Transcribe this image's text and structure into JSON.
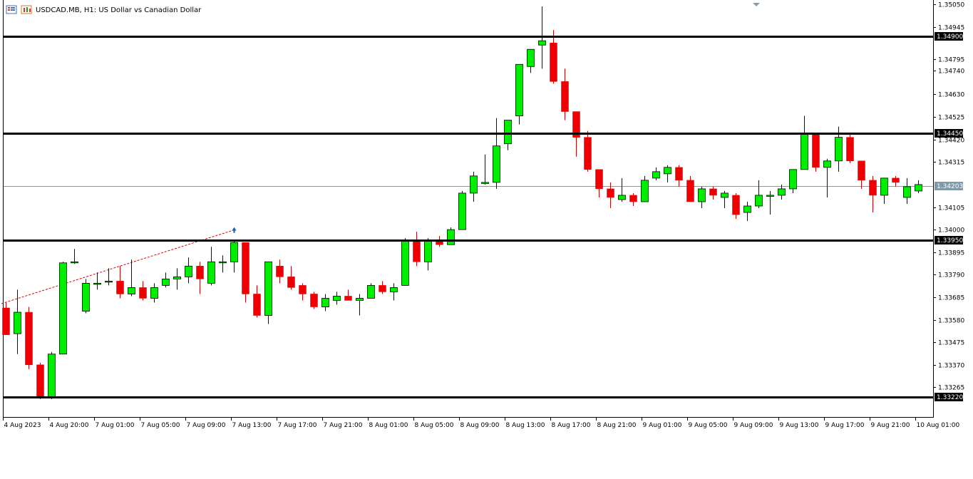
{
  "header": {
    "title": "USDCAD.MB, H1:  US Dollar vs Canadian Dollar"
  },
  "colors": {
    "bull": "#00ee00",
    "bear": "#ee0000",
    "wick_bull": "#111111",
    "wick_bear": "#cc0000",
    "level_line": "#000000",
    "current_price_line": "#7f99a8",
    "trendline": "#dd0000",
    "arrow": "#1a5ea8"
  },
  "chart_data": {
    "type": "candlestick",
    "symbol": "USDCAD.MB",
    "timeframe": "H1",
    "ylim": [
      1.3318,
      1.3505
    ],
    "y_ticks": [
      "1.35050",
      "1.34945",
      "1.34795",
      "1.34740",
      "1.34630",
      "1.34525",
      "1.34420",
      "1.34315",
      "1.34105",
      "1.34000",
      "1.33895",
      "1.33790",
      "1.33685",
      "1.33580",
      "1.33475",
      "1.33370",
      "1.33265"
    ],
    "x_tick_labels": [
      {
        "index": 0,
        "label": "4 Aug 2023"
      },
      {
        "index": 4,
        "label": "4 Aug 20:00"
      },
      {
        "index": 8,
        "label": "7 Aug 01:00"
      },
      {
        "index": 12,
        "label": "7 Aug 05:00"
      },
      {
        "index": 16,
        "label": "7 Aug 09:00"
      },
      {
        "index": 20,
        "label": "7 Aug 13:00"
      },
      {
        "index": 24,
        "label": "7 Aug 17:00"
      },
      {
        "index": 28,
        "label": "7 Aug 21:00"
      },
      {
        "index": 32,
        "label": "8 Aug 01:00"
      },
      {
        "index": 36,
        "label": "8 Aug 05:00"
      },
      {
        "index": 40,
        "label": "8 Aug 09:00"
      },
      {
        "index": 44,
        "label": "8 Aug 13:00"
      },
      {
        "index": 48,
        "label": "8 Aug 17:00"
      },
      {
        "index": 52,
        "label": "8 Aug 21:00"
      },
      {
        "index": 56,
        "label": "9 Aug 01:00"
      },
      {
        "index": 60,
        "label": "9 Aug 05:00"
      },
      {
        "index": 64,
        "label": "9 Aug 09:00"
      },
      {
        "index": 68,
        "label": "9 Aug 13:00"
      },
      {
        "index": 72,
        "label": "9 Aug 17:00"
      },
      {
        "index": 76,
        "label": "9 Aug 21:00"
      },
      {
        "index": 80,
        "label": "10 Aug 01:00"
      }
    ],
    "levels": [
      {
        "price": 1.349,
        "label": "1.34900"
      },
      {
        "price": 1.3445,
        "label": "1.34450"
      },
      {
        "price": 1.3395,
        "label": "1.33950"
      },
      {
        "price": 1.3322,
        "label": "1.33220"
      }
    ],
    "current_price": {
      "price": 1.34203,
      "label": "1.34203"
    },
    "trendline": {
      "from": {
        "index": 0,
        "price": 1.33655
      },
      "to": {
        "index": 20,
        "price": 1.34
      }
    },
    "arrow_marker": {
      "index": 20,
      "price": 1.33995
    },
    "candles": [
      {
        "o": 1.33635,
        "h": 1.3366,
        "l": 1.3351,
        "c": 1.3351
      },
      {
        "o": 1.33515,
        "h": 1.3372,
        "l": 1.3342,
        "c": 1.33615
      },
      {
        "o": 1.33615,
        "h": 1.3364,
        "l": 1.3335,
        "c": 1.3337
      },
      {
        "o": 1.3337,
        "h": 1.3338,
        "l": 1.3321,
        "c": 1.3322
      },
      {
        "o": 1.3322,
        "h": 1.3343,
        "l": 1.3321,
        "c": 1.3342
      },
      {
        "o": 1.3342,
        "h": 1.3385,
        "l": 1.3342,
        "c": 1.33845
      },
      {
        "o": 1.33845,
        "h": 1.3391,
        "l": 1.3384,
        "c": 1.3385
      },
      {
        "o": 1.3362,
        "h": 1.3377,
        "l": 1.3361,
        "c": 1.3375
      },
      {
        "o": 1.3375,
        "h": 1.338,
        "l": 1.3372,
        "c": 1.3375
      },
      {
        "o": 1.3376,
        "h": 1.3382,
        "l": 1.3374,
        "c": 1.3376
      },
      {
        "o": 1.3376,
        "h": 1.3383,
        "l": 1.3368,
        "c": 1.337
      },
      {
        "o": 1.337,
        "h": 1.3386,
        "l": 1.3369,
        "c": 1.3373
      },
      {
        "o": 1.3373,
        "h": 1.3376,
        "l": 1.3367,
        "c": 1.3368
      },
      {
        "o": 1.3368,
        "h": 1.3375,
        "l": 1.3366,
        "c": 1.3373
      },
      {
        "o": 1.3374,
        "h": 1.338,
        "l": 1.3373,
        "c": 1.3377
      },
      {
        "o": 1.3377,
        "h": 1.3382,
        "l": 1.3372,
        "c": 1.3378
      },
      {
        "o": 1.3378,
        "h": 1.3387,
        "l": 1.3375,
        "c": 1.3383
      },
      {
        "o": 1.3383,
        "h": 1.3385,
        "l": 1.337,
        "c": 1.3377
      },
      {
        "o": 1.3375,
        "h": 1.3392,
        "l": 1.3374,
        "c": 1.3385
      },
      {
        "o": 1.3385,
        "h": 1.3388,
        "l": 1.338,
        "c": 1.3385
      },
      {
        "o": 1.3385,
        "h": 1.3395,
        "l": 1.338,
        "c": 1.3394
      },
      {
        "o": 1.3394,
        "h": 1.3394,
        "l": 1.3366,
        "c": 1.337
      },
      {
        "o": 1.337,
        "h": 1.3374,
        "l": 1.3359,
        "c": 1.336
      },
      {
        "o": 1.336,
        "h": 1.3385,
        "l": 1.3356,
        "c": 1.3385
      },
      {
        "o": 1.3383,
        "h": 1.3386,
        "l": 1.3375,
        "c": 1.3378
      },
      {
        "o": 1.3378,
        "h": 1.3383,
        "l": 1.3372,
        "c": 1.3373
      },
      {
        "o": 1.3374,
        "h": 1.3375,
        "l": 1.3367,
        "c": 1.337
      },
      {
        "o": 1.337,
        "h": 1.3371,
        "l": 1.3363,
        "c": 1.3364
      },
      {
        "o": 1.3364,
        "h": 1.337,
        "l": 1.3362,
        "c": 1.3368
      },
      {
        "o": 1.3367,
        "h": 1.3371,
        "l": 1.3365,
        "c": 1.3369
      },
      {
        "o": 1.3369,
        "h": 1.3372,
        "l": 1.3367,
        "c": 1.3367
      },
      {
        "o": 1.3367,
        "h": 1.337,
        "l": 1.336,
        "c": 1.3368
      },
      {
        "o": 1.3368,
        "h": 1.3375,
        "l": 1.3368,
        "c": 1.3374
      },
      {
        "o": 1.3374,
        "h": 1.3376,
        "l": 1.337,
        "c": 1.3371
      },
      {
        "o": 1.3371,
        "h": 1.3375,
        "l": 1.3367,
        "c": 1.3373
      },
      {
        "o": 1.3374,
        "h": 1.3396,
        "l": 1.3374,
        "c": 1.3395
      },
      {
        "o": 1.3395,
        "h": 1.3399,
        "l": 1.3383,
        "c": 1.3385
      },
      {
        "o": 1.3385,
        "h": 1.3396,
        "l": 1.3381,
        "c": 1.3395
      },
      {
        "o": 1.3395,
        "h": 1.3397,
        "l": 1.3392,
        "c": 1.3393
      },
      {
        "o": 1.3393,
        "h": 1.3401,
        "l": 1.3393,
        "c": 1.34
      },
      {
        "o": 1.34,
        "h": 1.3418,
        "l": 1.34,
        "c": 1.3417
      },
      {
        "o": 1.3417,
        "h": 1.3427,
        "l": 1.3413,
        "c": 1.3425
      },
      {
        "o": 1.3422,
        "h": 1.3435,
        "l": 1.3421,
        "c": 1.3422
      },
      {
        "o": 1.3422,
        "h": 1.3452,
        "l": 1.3419,
        "c": 1.3439
      },
      {
        "o": 1.344,
        "h": 1.3451,
        "l": 1.3437,
        "c": 1.3451
      },
      {
        "o": 1.3453,
        "h": 1.3477,
        "l": 1.3449,
        "c": 1.3477
      },
      {
        "o": 1.3476,
        "h": 1.3484,
        "l": 1.3473,
        "c": 1.3484
      },
      {
        "o": 1.3486,
        "h": 1.3504,
        "l": 1.3475,
        "c": 1.3488
      },
      {
        "o": 1.3487,
        "h": 1.3493,
        "l": 1.3468,
        "c": 1.3469
      },
      {
        "o": 1.3469,
        "h": 1.3475,
        "l": 1.3451,
        "c": 1.3455
      },
      {
        "o": 1.3455,
        "h": 1.3455,
        "l": 1.3434,
        "c": 1.3443
      },
      {
        "o": 1.3443,
        "h": 1.3446,
        "l": 1.3427,
        "c": 1.3428
      },
      {
        "o": 1.3428,
        "h": 1.3428,
        "l": 1.3415,
        "c": 1.3419
      },
      {
        "o": 1.3419,
        "h": 1.3422,
        "l": 1.341,
        "c": 1.3415
      },
      {
        "o": 1.3414,
        "h": 1.3424,
        "l": 1.3413,
        "c": 1.3416
      },
      {
        "o": 1.3416,
        "h": 1.3417,
        "l": 1.3411,
        "c": 1.3413
      },
      {
        "o": 1.3413,
        "h": 1.3425,
        "l": 1.3413,
        "c": 1.3423
      },
      {
        "o": 1.3424,
        "h": 1.3429,
        "l": 1.3423,
        "c": 1.3427
      },
      {
        "o": 1.3426,
        "h": 1.343,
        "l": 1.3422,
        "c": 1.3429
      },
      {
        "o": 1.3429,
        "h": 1.343,
        "l": 1.342,
        "c": 1.3423
      },
      {
        "o": 1.3423,
        "h": 1.3425,
        "l": 1.3413,
        "c": 1.3413
      },
      {
        "o": 1.3413,
        "h": 1.342,
        "l": 1.341,
        "c": 1.3419
      },
      {
        "o": 1.3419,
        "h": 1.342,
        "l": 1.3414,
        "c": 1.3416
      },
      {
        "o": 1.3415,
        "h": 1.3418,
        "l": 1.341,
        "c": 1.3417
      },
      {
        "o": 1.3416,
        "h": 1.3417,
        "l": 1.3405,
        "c": 1.3407
      },
      {
        "o": 1.3408,
        "h": 1.3413,
        "l": 1.3404,
        "c": 1.3411
      },
      {
        "o": 1.3411,
        "h": 1.3423,
        "l": 1.341,
        "c": 1.3416
      },
      {
        "o": 1.3416,
        "h": 1.3418,
        "l": 1.3407,
        "c": 1.3416
      },
      {
        "o": 1.3416,
        "h": 1.3421,
        "l": 1.3414,
        "c": 1.3419
      },
      {
        "o": 1.3419,
        "h": 1.3428,
        "l": 1.3417,
        "c": 1.3428
      },
      {
        "o": 1.3428,
        "h": 1.3453,
        "l": 1.3428,
        "c": 1.3445
      },
      {
        "o": 1.3445,
        "h": 1.3445,
        "l": 1.3427,
        "c": 1.3429
      },
      {
        "o": 1.3429,
        "h": 1.3433,
        "l": 1.3415,
        "c": 1.3432
      },
      {
        "o": 1.3432,
        "h": 1.3448,
        "l": 1.3427,
        "c": 1.3443
      },
      {
        "o": 1.3443,
        "h": 1.3445,
        "l": 1.3431,
        "c": 1.3432
      },
      {
        "o": 1.3432,
        "h": 1.3432,
        "l": 1.3419,
        "c": 1.3423
      },
      {
        "o": 1.3423,
        "h": 1.3425,
        "l": 1.3408,
        "c": 1.3416
      },
      {
        "o": 1.3416,
        "h": 1.3424,
        "l": 1.3412,
        "c": 1.3424
      },
      {
        "o": 1.3424,
        "h": 1.3425,
        "l": 1.342,
        "c": 1.3422
      },
      {
        "o": 1.3415,
        "h": 1.3424,
        "l": 1.3412,
        "c": 1.342
      },
      {
        "o": 1.3418,
        "h": 1.3423,
        "l": 1.3417,
        "c": 1.3421
      }
    ]
  }
}
